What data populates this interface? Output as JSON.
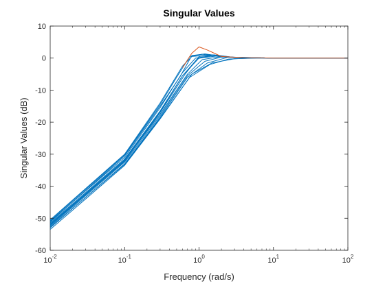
{
  "chart_data": {
    "type": "line",
    "title": "Singular Values",
    "xlabel": "Frequency (rad/s)",
    "ylabel": "Singular Values (dB)",
    "xscale": "log",
    "xlim": [
      0.01,
      100
    ],
    "ylim": [
      -60,
      10
    ],
    "xticks": [
      {
        "value": 0.01,
        "base": "10",
        "exp": "-2"
      },
      {
        "value": 0.1,
        "base": "10",
        "exp": "-1"
      },
      {
        "value": 1,
        "base": "10",
        "exp": "0"
      },
      {
        "value": 10,
        "base": "10",
        "exp": "1"
      },
      {
        "value": 100,
        "base": "10",
        "exp": "2"
      }
    ],
    "yticks": [
      {
        "value": 10,
        "label": "10"
      },
      {
        "value": 0,
        "label": "0"
      },
      {
        "value": -10,
        "label": "-10"
      },
      {
        "value": -20,
        "label": "-20"
      },
      {
        "value": -30,
        "label": "-30"
      },
      {
        "value": -40,
        "label": "-40"
      },
      {
        "value": -50,
        "label": "-50"
      },
      {
        "value": -60,
        "label": "-60"
      }
    ],
    "grid": false,
    "colors": {
      "samples": "#0072BD",
      "nominal": "#D95319"
    },
    "series": [
      {
        "color": "#0072BD",
        "points": [
          [
            0.01,
            -50.5
          ],
          [
            0.1,
            -30.0
          ],
          [
            0.3,
            -14.0
          ],
          [
            0.6,
            -2.5
          ],
          [
            0.8,
            0.5
          ],
          [
            1.5,
            1.0
          ],
          [
            3,
            0.2
          ],
          [
            10,
            0
          ],
          [
            100,
            0
          ]
        ]
      },
      {
        "color": "#0072BD",
        "points": [
          [
            0.01,
            -51.0
          ],
          [
            0.1,
            -31.0
          ],
          [
            0.3,
            -15.5
          ],
          [
            0.6,
            -4.5
          ],
          [
            0.9,
            0.0
          ],
          [
            1.5,
            0.8
          ],
          [
            3,
            0.2
          ],
          [
            10,
            0
          ],
          [
            100,
            0
          ]
        ]
      },
      {
        "color": "#0072BD",
        "points": [
          [
            0.01,
            -51.5
          ],
          [
            0.1,
            -31.5
          ],
          [
            0.3,
            -16.5
          ],
          [
            0.6,
            -5.5
          ],
          [
            1.0,
            0.0
          ],
          [
            1.7,
            0.6
          ],
          [
            3,
            0.2
          ],
          [
            10,
            0
          ],
          [
            100,
            0
          ]
        ]
      },
      {
        "color": "#0072BD",
        "points": [
          [
            0.01,
            -52.0
          ],
          [
            0.1,
            -32.0
          ],
          [
            0.3,
            -17.5
          ],
          [
            0.7,
            -5.0
          ],
          [
            1.1,
            -0.5
          ],
          [
            2,
            0.5
          ],
          [
            4,
            0.1
          ],
          [
            10,
            0
          ],
          [
            100,
            0
          ]
        ]
      },
      {
        "color": "#0072BD",
        "points": [
          [
            0.01,
            -52.5
          ],
          [
            0.1,
            -32.5
          ],
          [
            0.3,
            -18.0
          ],
          [
            0.7,
            -5.5
          ],
          [
            1.2,
            -1.0
          ],
          [
            2,
            0.3
          ],
          [
            4,
            0.1
          ],
          [
            10,
            0
          ],
          [
            100,
            0
          ]
        ]
      },
      {
        "color": "#0072BD",
        "points": [
          [
            0.01,
            -53.0
          ],
          [
            0.1,
            -33.0
          ],
          [
            0.3,
            -18.5
          ],
          [
            0.7,
            -6.0
          ],
          [
            1.3,
            -1.5
          ],
          [
            2.5,
            0.3
          ],
          [
            5,
            0.1
          ],
          [
            10,
            0
          ],
          [
            100,
            0
          ]
        ]
      },
      {
        "color": "#0072BD",
        "points": [
          [
            0.01,
            -53.5
          ],
          [
            0.1,
            -33.5
          ],
          [
            0.3,
            -19.0
          ],
          [
            0.8,
            -5.0
          ],
          [
            1.5,
            -1.5
          ],
          [
            3,
            -0.2
          ],
          [
            6,
            0
          ],
          [
            10,
            0
          ],
          [
            100,
            0
          ]
        ]
      },
      {
        "color": "#0072BD",
        "points": [
          [
            0.01,
            -51.2
          ],
          [
            0.1,
            -30.5
          ],
          [
            0.3,
            -15.0
          ],
          [
            0.55,
            -6.0
          ],
          [
            0.8,
            0.8
          ],
          [
            1.2,
            1.3
          ],
          [
            2.5,
            0.3
          ],
          [
            10,
            0
          ],
          [
            100,
            0
          ]
        ]
      },
      {
        "color": "#0072BD",
        "points": [
          [
            0.01,
            -52.2
          ],
          [
            0.1,
            -32.2
          ],
          [
            0.3,
            -17.0
          ],
          [
            0.65,
            -5.0
          ],
          [
            1.0,
            0.5
          ],
          [
            1.6,
            1.0
          ],
          [
            3,
            0.2
          ],
          [
            10,
            0
          ],
          [
            100,
            0
          ]
        ]
      },
      {
        "color": "#0072BD",
        "points": [
          [
            0.01,
            -52.8
          ],
          [
            0.1,
            -33.2
          ],
          [
            0.3,
            -18.8
          ],
          [
            0.75,
            -6.0
          ],
          [
            1.4,
            -2.0
          ],
          [
            2.5,
            -0.3
          ],
          [
            5,
            0
          ],
          [
            10,
            0
          ],
          [
            100,
            0
          ]
        ]
      },
      {
        "color": "#0072BD",
        "points": [
          [
            0.01,
            -51.8
          ],
          [
            0.1,
            -31.8
          ],
          [
            0.3,
            -16.8
          ],
          [
            0.6,
            -5.5
          ],
          [
            0.95,
            -0.2
          ],
          [
            1.5,
            0.8
          ],
          [
            3,
            0.2
          ],
          [
            10,
            0
          ],
          [
            100,
            0
          ]
        ]
      },
      {
        "color": "#0072BD",
        "points": [
          [
            0.01,
            -50.8
          ],
          [
            0.1,
            -30.2
          ],
          [
            0.3,
            -14.5
          ],
          [
            0.5,
            -6.0
          ],
          [
            0.75,
            0.5
          ],
          [
            1.1,
            1.2
          ],
          [
            2.5,
            0.3
          ],
          [
            10,
            0
          ],
          [
            100,
            0
          ]
        ]
      },
      {
        "color": "#D95319",
        "points": [
          [
            0.6,
            -3.0
          ],
          [
            0.8,
            1.5
          ],
          [
            1.0,
            3.5
          ],
          [
            1.3,
            2.5
          ],
          [
            2,
            0.5
          ],
          [
            4,
            0.1
          ],
          [
            10,
            0
          ],
          [
            100,
            0
          ]
        ]
      }
    ]
  }
}
